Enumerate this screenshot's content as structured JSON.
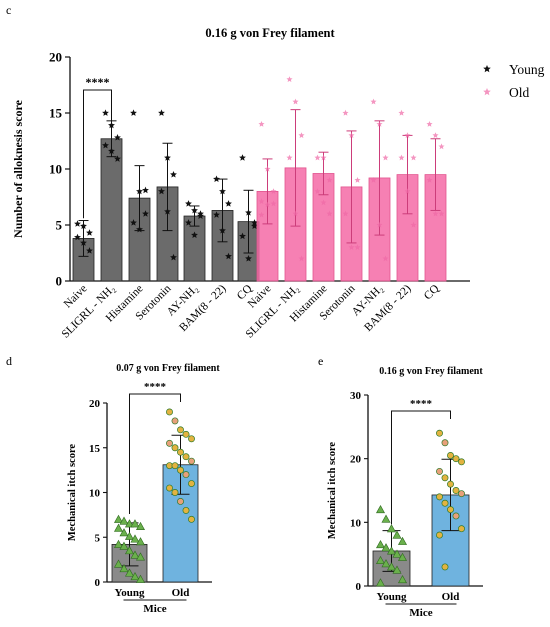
{
  "panels": {
    "c": "c",
    "d": "d",
    "e": "e"
  },
  "colors": {
    "young_bar": "#6b6b6b",
    "old_bar": "#f46aa6",
    "old_bar_light": "#f8b5cf",
    "young_marker": "#111111",
    "old_marker": "#f06aa6",
    "young_d_bar": "#8a8a8a",
    "old_d_bar": "#6fb3df",
    "triangle_fill": "#6ab04c",
    "circle_fill": "#e3b340",
    "circle_fill_alt": "#e8a07a"
  },
  "chart_data": [
    {
      "id": "c",
      "type": "bar",
      "title": "0.16 g von Frey filament",
      "ylabel": "Number of alloknesis score",
      "ylim": [
        0,
        20
      ],
      "yticks": [
        0,
        5,
        10,
        15,
        20
      ],
      "categories": [
        "Naive",
        "SLIGRL - NH₂",
        "Histamine",
        "Serotonin",
        "AY-NH₂",
        "BAM(8 - 22)",
        "CQ"
      ],
      "legend": [
        "Young",
        "Old"
      ],
      "legend_position": "top-right",
      "significance": "****",
      "series": [
        {
          "name": "Young",
          "values": [
            3.8,
            12.7,
            7.4,
            8.4,
            5.8,
            6.3,
            5.3
          ],
          "error": [
            1.6,
            1.6,
            2.9,
            3.9,
            0.9,
            2.8,
            2.8
          ],
          "points": [
            [
              5.1,
              4.9,
              4.3,
              3.9,
              3.4,
              2.7
            ],
            [
              15.0,
              13.9,
              12.8,
              12.1,
              11.6,
              10.9
            ],
            [
              15.0,
              8.0,
              6.0,
              5.2,
              4.6,
              8.1
            ],
            [
              15.0,
              11.0,
              9.5,
              8.0,
              6.2,
              2.1
            ],
            [
              6.9,
              6.3,
              5.8,
              5.2,
              4.1,
              6.0
            ],
            [
              9.1,
              8.0,
              6.9,
              5.9,
              4.5,
              2.2
            ],
            [
              11.0,
              6.1,
              5.2,
              4.0,
              2.0,
              4.9
            ]
          ]
        },
        {
          "name": "Old",
          "values": [
            8.0,
            10.1,
            9.6,
            8.4,
            9.2,
            9.5,
            9.5
          ],
          "error": [
            2.9,
            5.2,
            1.9,
            5.0,
            5.1,
            3.5,
            3.2
          ],
          "points": [
            [
              14.0,
              10.0,
              8.0,
              7.1,
              6.8,
              6.9,
              5.9
            ],
            [
              18.0,
              16.0,
              13.0,
              11.0,
              6.0,
              2.0
            ],
            [
              11.0,
              11.0,
              9.0,
              8.0,
              7.0,
              6.0
            ],
            [
              15.0,
              13.0,
              9.0,
              6.0,
              3.0,
              3.0
            ],
            [
              16.0,
              14.0,
              11.0,
              9.0,
              5.0,
              2.0
            ],
            [
              15.0,
              13.0,
              11.0,
              11.0,
              8.0,
              5.0
            ],
            [
              14.0,
              13.0,
              12.0,
              9.0,
              6.0,
              6.0
            ]
          ]
        }
      ]
    },
    {
      "id": "d",
      "type": "bar",
      "title": "0.07 g von Frey filament",
      "ylabel": "Mechanical itch score",
      "xlabel": "Mice",
      "ylim": [
        0,
        20
      ],
      "yticks": [
        0,
        5,
        10,
        15,
        20
      ],
      "categories": [
        "Young",
        "Old"
      ],
      "significance": "****",
      "values": [
        4.2,
        13.1
      ],
      "error": [
        2.4,
        3.3
      ],
      "points": [
        [
          7.0,
          6.8,
          6.5,
          6.5,
          6.2,
          6.0,
          5.5,
          5.1,
          4.8,
          4.5,
          4.2,
          4.0,
          3.5,
          3.0,
          2.8,
          2.0,
          1.5,
          1.0,
          0.6,
          0.3
        ],
        [
          19.0,
          18.0,
          17.0,
          16.5,
          16.0,
          15.5,
          15.0,
          14.5,
          14.0,
          13.5,
          13.0,
          13.0,
          12.5,
          12.0,
          11.0,
          10.5,
          10.0,
          9.0,
          8.0,
          7.0
        ]
      ]
    },
    {
      "id": "e",
      "type": "bar",
      "title": "0.16 g von Frey filament",
      "ylabel": "Mechanical itch score",
      "xlabel": "Mice",
      "ylim": [
        0,
        30
      ],
      "yticks": [
        0,
        10,
        20,
        30
      ],
      "categories": [
        "Young",
        "Old"
      ],
      "significance": "****",
      "values": [
        5.5,
        14.3
      ],
      "error": [
        3.2,
        5.6
      ],
      "points": [
        [
          12.0,
          10.5,
          9.0,
          8.0,
          7.0,
          6.5,
          6.0,
          5.5,
          5.0,
          4.5,
          4.0,
          3.5,
          3.0,
          2.5,
          1.0,
          0.5
        ],
        [
          24.0,
          22.5,
          20.5,
          20.0,
          19.5,
          18.0,
          17.0,
          16.0,
          15.0,
          14.5,
          14.0,
          13.0,
          12.0,
          11.0,
          9.0,
          8.0,
          3.0
        ]
      ]
    }
  ]
}
